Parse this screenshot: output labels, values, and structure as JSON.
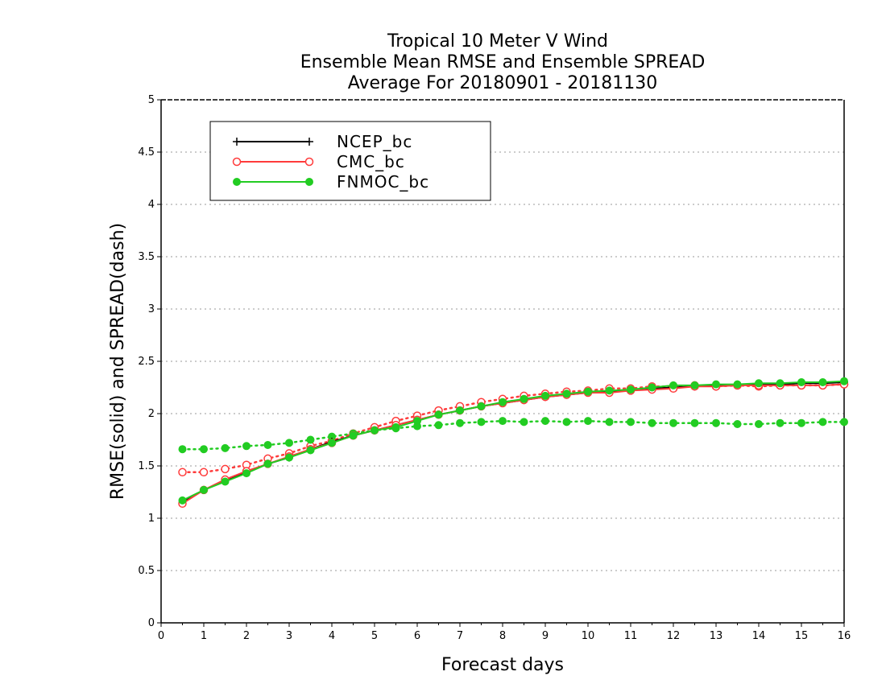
{
  "chart_data": {
    "type": "line",
    "title_lines": [
      "Tropical 10 Meter V Wind",
      "Ensemble Mean RMSE and Ensemble SPREAD",
      "Average For 20180901 - 20181130"
    ],
    "xlabel": "Forecast days",
    "ylabel": "RMSE(solid) and SPREAD(dash)",
    "xlim": [
      0,
      16
    ],
    "ylim": [
      0,
      5
    ],
    "x_ticks": [
      "0",
      "1",
      "2",
      "3",
      "4",
      "5",
      "6",
      "7",
      "8",
      "9",
      "10",
      "11",
      "12",
      "13",
      "14",
      "15",
      "16"
    ],
    "y_ticks": [
      "0",
      "0.5",
      "1",
      "1.5",
      "2",
      "2.5",
      "3",
      "3.5",
      "4",
      "4.5",
      "5"
    ],
    "grid": "horizontal dotted",
    "legend_placement": "top-left",
    "x": [
      0.5,
      1,
      1.5,
      2,
      2.5,
      3,
      3.5,
      4,
      4.5,
      5,
      5.5,
      6,
      6.5,
      7,
      7.5,
      8,
      8.5,
      9,
      9.5,
      10,
      10.5,
      11,
      11.5,
      12,
      12.5,
      13,
      13.5,
      14,
      14.5,
      15,
      15.5,
      16
    ],
    "series": [
      {
        "name": "NCEP_bc",
        "color": "#000000",
        "marker": "plus",
        "rmse": [
          1.15,
          1.27,
          1.36,
          1.44,
          1.52,
          1.58,
          1.66,
          1.73,
          1.79,
          1.84,
          1.89,
          1.94,
          1.99,
          2.03,
          2.07,
          2.1,
          2.13,
          2.16,
          2.18,
          2.2,
          2.21,
          2.22,
          2.24,
          2.25,
          2.26,
          2.27,
          2.27,
          2.28,
          2.28,
          2.29,
          2.29,
          2.3
        ],
        "spread": null
      },
      {
        "name": "CMC_bc",
        "color": "#ff3b3b",
        "marker": "open-circle",
        "rmse": [
          1.14,
          1.27,
          1.37,
          1.45,
          1.52,
          1.59,
          1.66,
          1.72,
          1.79,
          1.84,
          1.89,
          1.94,
          1.99,
          2.03,
          2.07,
          2.1,
          2.13,
          2.16,
          2.18,
          2.2,
          2.2,
          2.22,
          2.23,
          2.24,
          2.26,
          2.26,
          2.27,
          2.27,
          2.27,
          2.27,
          2.27,
          2.28
        ],
        "spread": [
          1.44,
          1.44,
          1.47,
          1.51,
          1.57,
          1.62,
          1.69,
          1.74,
          1.81,
          1.87,
          1.93,
          1.98,
          2.03,
          2.07,
          2.11,
          2.14,
          2.17,
          2.19,
          2.21,
          2.22,
          2.24,
          2.24,
          2.26,
          2.26,
          2.27,
          2.26,
          2.27,
          2.26,
          2.27,
          2.27,
          2.27,
          2.28
        ]
      },
      {
        "name": "FNMOC_bc",
        "color": "#22cc22",
        "marker": "filled-circle",
        "rmse": [
          1.17,
          1.27,
          1.35,
          1.43,
          1.52,
          1.58,
          1.65,
          1.72,
          1.79,
          1.84,
          1.87,
          1.93,
          1.99,
          2.03,
          2.07,
          2.11,
          2.14,
          2.17,
          2.19,
          2.21,
          2.22,
          2.23,
          2.25,
          2.27,
          2.27,
          2.28,
          2.28,
          2.29,
          2.29,
          2.3,
          2.3,
          2.31
        ],
        "spread": [
          1.66,
          1.66,
          1.67,
          1.69,
          1.7,
          1.72,
          1.75,
          1.78,
          1.81,
          1.84,
          1.86,
          1.88,
          1.89,
          1.91,
          1.92,
          1.93,
          1.92,
          1.93,
          1.92,
          1.93,
          1.92,
          1.92,
          1.91,
          1.91,
          1.91,
          1.91,
          1.9,
          1.9,
          1.91,
          1.91,
          1.92,
          1.92
        ]
      }
    ]
  }
}
